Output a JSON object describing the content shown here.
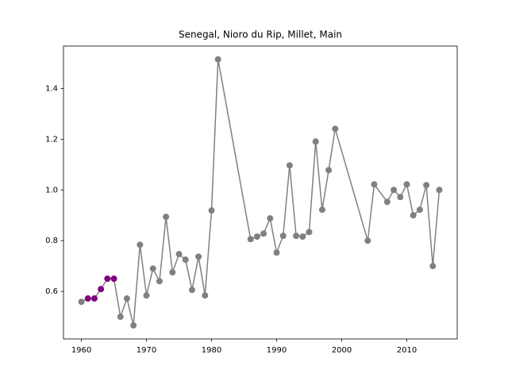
{
  "chart_data": {
    "type": "line",
    "title": "Senegal, Nioro du Rip, Millet, Main",
    "x": [
      1960,
      1961,
      1962,
      1963,
      1964,
      1965,
      1966,
      1967,
      1968,
      1969,
      1970,
      1971,
      1972,
      1973,
      1974,
      1975,
      1976,
      1977,
      1978,
      1979,
      1980,
      1981,
      1986,
      1987,
      1988,
      1989,
      1990,
      1991,
      1992,
      1993,
      1994,
      1995,
      1996,
      1997,
      1998,
      1999,
      2004,
      2005,
      2007,
      2008,
      2009,
      2010,
      2011,
      2012,
      2013,
      2014,
      2015
    ],
    "series": [
      {
        "color": "#808080",
        "values": [
          0.559,
          0.572,
          0.572,
          0.609,
          0.65,
          0.65,
          0.5,
          0.572,
          0.466,
          0.784,
          0.584,
          0.69,
          0.64,
          0.894,
          0.675,
          0.747,
          0.725,
          0.606,
          0.737,
          0.584,
          0.919,
          1.515,
          0.806,
          0.816,
          0.828,
          0.888,
          0.753,
          0.819,
          1.097,
          0.819,
          0.816,
          0.834,
          1.191,
          0.922,
          1.078,
          1.241,
          0.8,
          1.022,
          0.953,
          1.0,
          0.972,
          1.022,
          0.9,
          0.922,
          1.019,
          0.7,
          1.0
        ],
        "point_colors": [
          "#808080",
          "#800080",
          "#800080",
          "#800080",
          "#800080",
          "#800080",
          "#808080",
          "#808080",
          "#808080",
          "#808080",
          "#808080",
          "#808080",
          "#808080",
          "#808080",
          "#808080",
          "#808080",
          "#808080",
          "#808080",
          "#808080",
          "#808080",
          "#808080",
          "#808080",
          "#808080",
          "#808080",
          "#808080",
          "#808080",
          "#808080",
          "#808080",
          "#808080",
          "#808080",
          "#808080",
          "#808080",
          "#808080",
          "#808080",
          "#808080",
          "#808080",
          "#808080",
          "#808080",
          "#808080",
          "#808080",
          "#808080",
          "#808080",
          "#808080",
          "#808080",
          "#808080",
          "#808080",
          "#808080"
        ]
      }
    ],
    "xlim": [
      1957.25,
      2017.75
    ],
    "xticks": [
      1960,
      1970,
      1980,
      1990,
      2000,
      2010
    ],
    "ylim": [
      0.4125,
      1.5675
    ],
    "yticks": [
      0.6,
      0.8,
      {
        "value": 1.0,
        "label": "1.0"
      },
      1.2,
      1.4
    ],
    "grid": false
  }
}
